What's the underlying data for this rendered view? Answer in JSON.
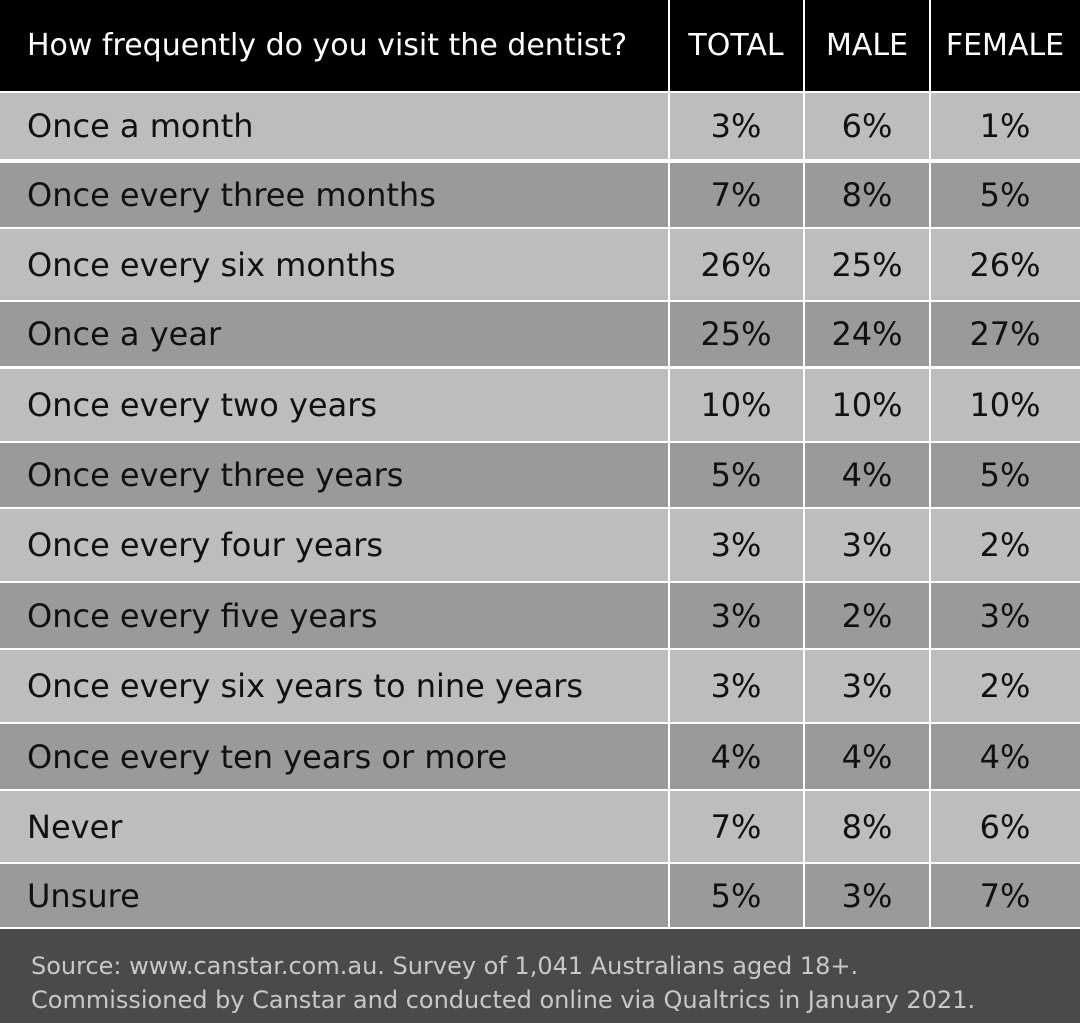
{
  "chart_data": {
    "type": "table",
    "title": "How frequently do you visit the dentist?",
    "columns": [
      "TOTAL",
      "MALE",
      "FEMALE"
    ],
    "rows": [
      {
        "label": "Once a month",
        "total": "3%",
        "male": "6%",
        "female": "1%"
      },
      {
        "label": "Once every three months",
        "total": "7%",
        "male": "8%",
        "female": "5%"
      },
      {
        "label": "Once every six months",
        "total": "26%",
        "male": "25%",
        "female": "26%"
      },
      {
        "label": "Once a year",
        "total": "25%",
        "male": "24%",
        "female": "27%"
      },
      {
        "label": "Once every two years",
        "total": "10%",
        "male": "10%",
        "female": "10%"
      },
      {
        "label": "Once every three years",
        "total": "5%",
        "male": "4%",
        "female": "5%"
      },
      {
        "label": "Once every four years",
        "total": "3%",
        "male": "3%",
        "female": "2%"
      },
      {
        "label": "Once every five years",
        "total": "3%",
        "male": "2%",
        "female": "3%"
      },
      {
        "label": "Once every six years to nine years",
        "total": "3%",
        "male": "3%",
        "female": "2%"
      },
      {
        "label": "Once every ten years or more",
        "total": "4%",
        "male": "4%",
        "female": "4%"
      },
      {
        "label": "Never",
        "total": "7%",
        "male": "8%",
        "female": "6%"
      },
      {
        "label": "Unsure",
        "total": "5%",
        "male": "3%",
        "female": "7%"
      }
    ],
    "source_line1": "Source: www.canstar.com.au. Survey of 1,041 Australians aged 18+.",
    "source_line2": "Commissioned by Canstar and conducted online via Qualtrics in January 2021."
  },
  "colors": {
    "header_bg": "#000000",
    "row_light": "#bdbdbd",
    "row_dark": "#9a9a9a",
    "footer_bg": "#4a4a4a"
  }
}
